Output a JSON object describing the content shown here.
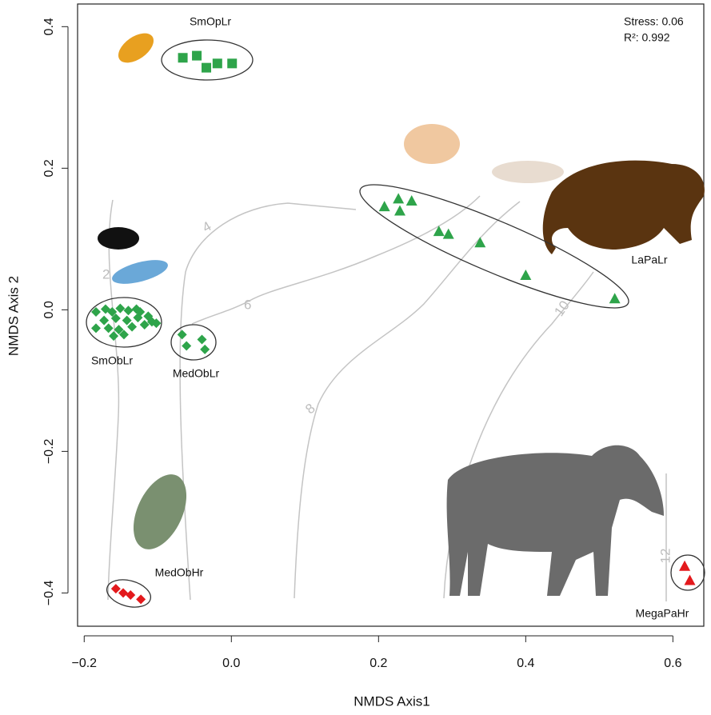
{
  "chart_data": {
    "type": "scatter",
    "x_label": "NMDS Axis1",
    "y_label": "NMDS Axis 2",
    "annotations": [
      "Stress: 0.06",
      "R²: 0.992"
    ],
    "contour_labels": [
      2,
      4,
      6,
      8,
      10,
      12
    ],
    "xlim": [
      -0.209,
      0.642
    ],
    "ylim": [
      -0.447,
      0.432
    ],
    "xticks": [
      {
        "value": -0.2,
        "label": "−0.2"
      },
      {
        "value": 0,
        "label": "0.0"
      },
      0.2,
      0.4,
      0.6
    ],
    "yticks": [
      {
        "value": -0.4,
        "label": "−0.4"
      },
      {
        "value": -0.2,
        "label": "−0.2"
      },
      {
        "value": 0,
        "label": "0.0"
      },
      0.2,
      0.4
    ],
    "series": [
      {
        "name": "SmOpLr",
        "color": "#2ea44a",
        "marker": "square",
        "x": [
          -0.066,
          -0.047,
          -0.034,
          -0.019,
          0.001
        ],
        "values": [
          0.356,
          0.359,
          0.342,
          0.348,
          0.348
        ]
      },
      {
        "name": "LaPaLr",
        "color": "#2ea44a",
        "marker": "triangle",
        "x": [
          0.208,
          0.227,
          0.245,
          0.229,
          0.282,
          0.295,
          0.338,
          0.4,
          0.521
        ],
        "values": [
          0.146,
          0.157,
          0.154,
          0.14,
          0.111,
          0.107,
          0.095,
          0.049,
          0.016
        ]
      },
      {
        "name": "SmObLr",
        "color": "#2ea44a",
        "marker": "diamond",
        "x": [
          -0.184,
          -0.171,
          -0.162,
          -0.151,
          -0.14,
          -0.129,
          -0.173,
          -0.157,
          -0.142,
          -0.127,
          -0.113,
          -0.108,
          -0.184,
          -0.167,
          -0.153,
          -0.135,
          -0.118,
          -0.102,
          -0.16,
          -0.146,
          -0.124
        ],
        "values": [
          -0.003,
          0.001,
          -0.003,
          0.002,
          -0.001,
          0.001,
          -0.015,
          -0.012,
          -0.015,
          -0.011,
          -0.009,
          -0.017,
          -0.026,
          -0.026,
          -0.028,
          -0.024,
          -0.021,
          -0.019,
          -0.037,
          -0.035,
          -0.003
        ]
      },
      {
        "name": "MedObLr",
        "color": "#2ea44a",
        "marker": "diamond",
        "x": [
          -0.067,
          -0.061,
          -0.04,
          -0.036
        ],
        "values": [
          -0.035,
          -0.051,
          -0.042,
          -0.056
        ]
      },
      {
        "name": "MedObHr",
        "color": "#e3191c",
        "marker": "diamond",
        "x": [
          -0.157,
          -0.147,
          -0.137,
          -0.123
        ],
        "values": [
          -0.394,
          -0.4,
          -0.403,
          -0.409
        ]
      },
      {
        "name": "MegaPaHr",
        "color": "#e3191c",
        "marker": "triangle",
        "x": [
          0.616,
          0.623
        ],
        "values": [
          -0.362,
          -0.382
        ]
      }
    ]
  }
}
